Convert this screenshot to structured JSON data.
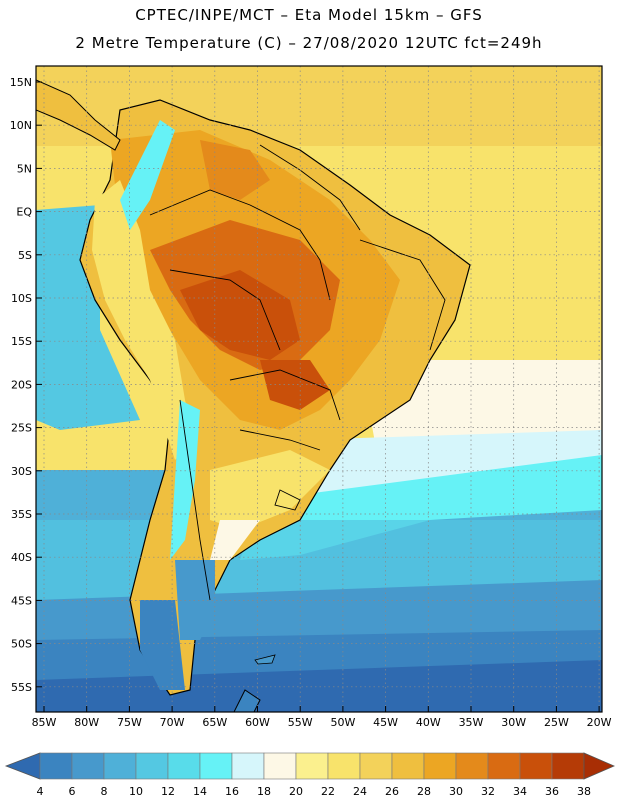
{
  "header": {
    "line1": "CPTEC/INPE/MCT –  Eta Model 15km – GFS",
    "line2": "2 Metre Temperature (C) – 27/08/2020 12UTC fct=249h"
  },
  "axes": {
    "lat_labels": [
      "15N",
      "10N",
      "5N",
      "EQ",
      "5S",
      "10S",
      "15S",
      "20S",
      "25S",
      "30S",
      "35S",
      "40S",
      "45S",
      "50S",
      "55S"
    ],
    "lon_labels": [
      "85W",
      "80W",
      "75W",
      "70W",
      "65W",
      "60W",
      "55W",
      "50W",
      "45W",
      "40W",
      "35W",
      "30W",
      "25W",
      "20W"
    ]
  },
  "colorbar": {
    "ticks": [
      "4",
      "6",
      "8",
      "10",
      "12",
      "14",
      "16",
      "18",
      "20",
      "22",
      "24",
      "26",
      "28",
      "30",
      "32",
      "34",
      "36",
      "38"
    ],
    "colors": [
      "#2f6ab0",
      "#3b84c0",
      "#4799cc",
      "#4fb0d8",
      "#54c8e2",
      "#58dcea",
      "#66f2f6",
      "#d6f6fb",
      "#fdf8e6",
      "#fbf08e",
      "#f8e36b",
      "#f3d25a",
      "#efbf3f",
      "#eca623",
      "#e48a1b",
      "#d96b12",
      "#c9500a",
      "#b53b06",
      "#a82e04"
    ]
  }
}
